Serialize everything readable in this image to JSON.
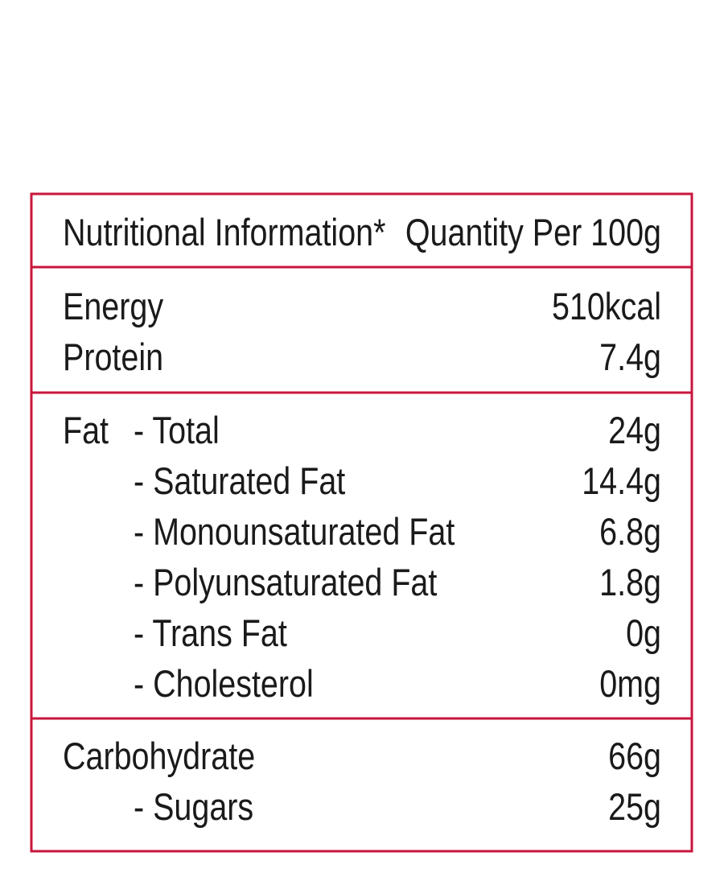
{
  "header": {
    "title": "Nutritional Information*",
    "quantity": "Quantity Per 100g"
  },
  "sections": [
    {
      "rows": [
        {
          "label": "Energy",
          "value": "510kcal"
        },
        {
          "label": "Protein",
          "value": "7.4g"
        }
      ]
    },
    {
      "rows": [
        {
          "label": "Fat",
          "sub": "- Total",
          "value": "24g"
        },
        {
          "sub": "- Saturated Fat",
          "value": "14.4g"
        },
        {
          "sub": "- Monounsaturated Fat",
          "value": "6.8g"
        },
        {
          "sub": "- Polyunsaturated Fat",
          "value": "1.8g"
        },
        {
          "sub": "- Trans Fat",
          "value": "0g"
        },
        {
          "sub": "- Cholesterol",
          "value": "0mg"
        }
      ]
    },
    {
      "rows": [
        {
          "label": "Carbohydrate",
          "value": "66g"
        },
        {
          "sub": "- Sugars",
          "value": "25g"
        }
      ]
    }
  ]
}
